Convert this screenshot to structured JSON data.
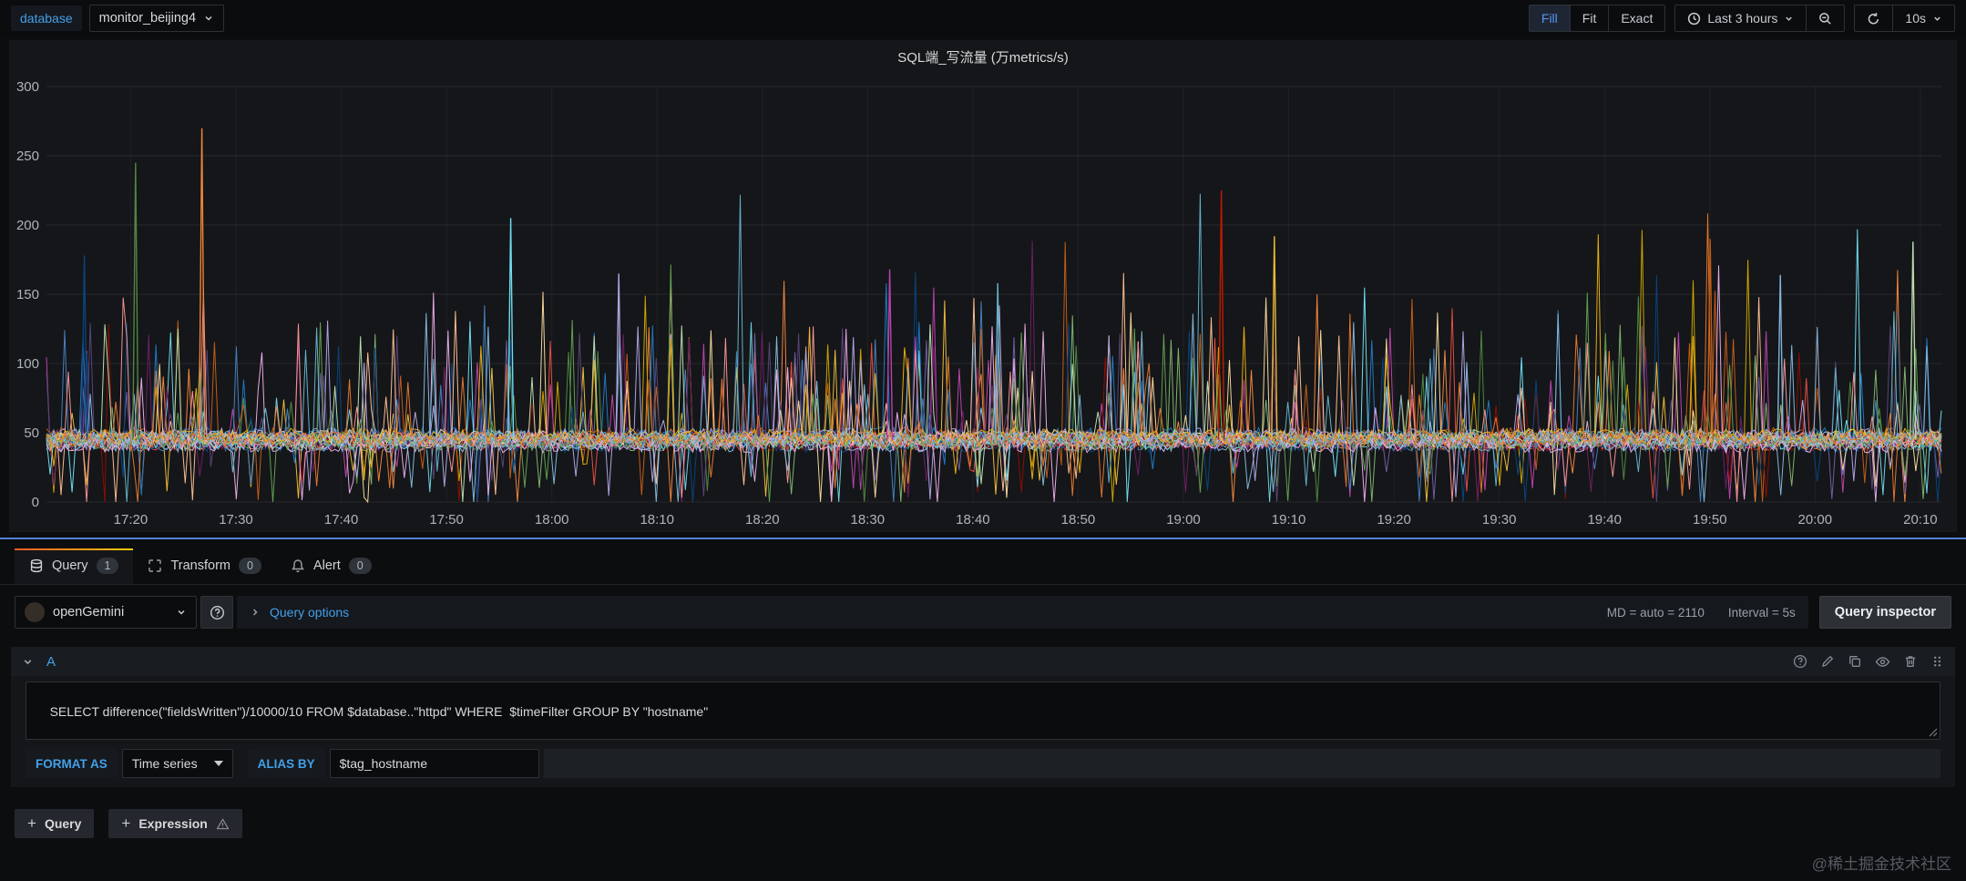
{
  "top_bar": {
    "variable": {
      "label": "database",
      "value": "monitor_beijing4"
    },
    "view_modes": [
      {
        "label": "Fill"
      },
      {
        "label": "Fit"
      },
      {
        "label": "Exact"
      }
    ],
    "active_view_mode": "Fill",
    "time_range": "Last 3 hours",
    "refresh_interval": "10s"
  },
  "panel": {
    "title": "SQL端_写流量 (万metrics/s)"
  },
  "chart_data": {
    "type": "line",
    "title": "SQL端_写流量 (万metrics/s)",
    "xlabel": "",
    "ylabel": "",
    "ylim": [
      0,
      300
    ],
    "yticks": [
      0,
      50,
      100,
      150,
      200,
      250,
      300
    ],
    "xticks": [
      "17:20",
      "17:30",
      "17:40",
      "17:50",
      "18:00",
      "18:10",
      "18:20",
      "18:30",
      "18:40",
      "18:50",
      "19:00",
      "19:10",
      "19:20",
      "19:30",
      "19:40",
      "19:50",
      "20:00",
      "20:10"
    ],
    "x_axis": {
      "first_tick_offset_min": 8,
      "step_min": 10,
      "total_min": 180
    },
    "grid": true,
    "legend": false,
    "series_note": "~28 per-hostname series (GROUP BY hostname); dense noise band around baseline ≈45 万metrics/s with frequent vertical spikes 60–270 and dips toward 0",
    "baseline": 45,
    "num_series": 28,
    "points_per_series": 520,
    "seed": 1337,
    "notable_spikes": [
      {
        "frac": 0.082,
        "value": 270
      },
      {
        "frac": 0.047,
        "value": 245
      },
      {
        "frac": 0.02,
        "value": 178
      },
      {
        "frac": 0.245,
        "value": 205
      },
      {
        "frac": 0.302,
        "value": 165
      },
      {
        "frac": 0.62,
        "value": 225
      },
      {
        "frac": 0.648,
        "value": 192
      },
      {
        "frac": 0.445,
        "value": 168
      },
      {
        "frac": 0.878,
        "value": 190
      },
      {
        "frac": 0.985,
        "value": 188
      },
      {
        "frac": 0.915,
        "value": 164
      },
      {
        "frac": 0.502,
        "value": 158
      }
    ],
    "palette": [
      "#7EB26D",
      "#EAB839",
      "#6ED0E0",
      "#EF843C",
      "#E24D42",
      "#1F78C1",
      "#BA43A9",
      "#705DA0",
      "#508642",
      "#CCA300",
      "#447EBC",
      "#C15C17",
      "#890F02",
      "#0A437C",
      "#6D1F62",
      "#584477",
      "#B7DBAB",
      "#F4D598",
      "#70DBED",
      "#F9BA8F",
      "#F29191",
      "#82B5D8",
      "#E5A8E2",
      "#AEA2E0",
      "#629E51",
      "#E5AC0E",
      "#64B0C8",
      "#E0752D",
      "#BF1B00",
      "#0A50A1",
      "#962D82",
      "#614D93"
    ]
  },
  "tabs": [
    {
      "label": "Query",
      "count": "1"
    },
    {
      "label": "Transform",
      "count": "0"
    },
    {
      "label": "Alert",
      "count": "0"
    }
  ],
  "active_tab": "Query",
  "datasource_row": {
    "datasource_name": "openGemini",
    "query_options_label": "Query options",
    "max_data_points_text": "MD = auto = 2110",
    "interval_text": "Interval = 5s",
    "query_inspector_label": "Query inspector"
  },
  "query_editor": {
    "ref_id": "A",
    "query_text": "SELECT difference(\"fieldsWritten\")/10000/10 FROM $database..\"httpd\" WHERE  $timeFilter GROUP BY \"hostname\"",
    "format_as_label": "FORMAT AS",
    "format_as_value": "Time series",
    "alias_by_label": "ALIAS BY",
    "alias_by_value": "$tag_hostname"
  },
  "actions": {
    "add_query_label": "Query",
    "add_expression_label": "Expression"
  },
  "watermark": "@稀土掘金技术社区"
}
